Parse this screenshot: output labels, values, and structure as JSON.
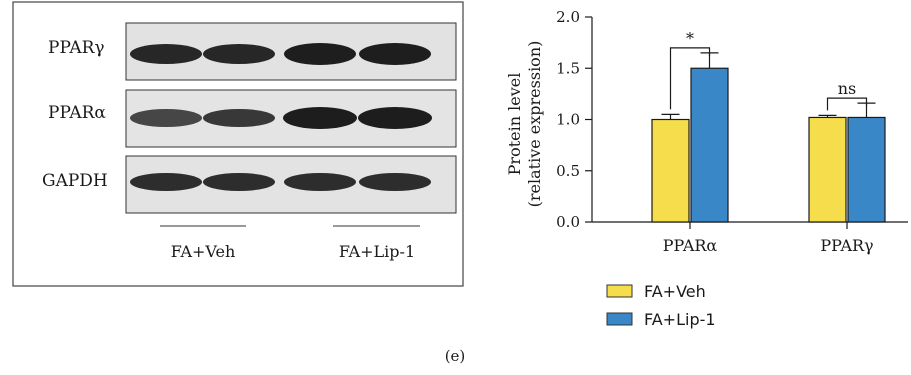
{
  "panel_label": "(e)",
  "western_blot": {
    "rows": [
      {
        "label": "PPARγ"
      },
      {
        "label": "PPARα"
      },
      {
        "label": "GAPDH"
      }
    ],
    "groups": [
      {
        "label": "FA+Veh",
        "lanes": 2
      },
      {
        "label": "FA+Lip-1",
        "lanes": 2
      }
    ]
  },
  "chart_data": {
    "type": "bar",
    "categories": [
      "PPARα",
      "PPARγ"
    ],
    "series": [
      {
        "name": "FA+Veh",
        "color": "#f6dd4c",
        "values": [
          1.0,
          1.02
        ],
        "errors": [
          0.05,
          0.02
        ]
      },
      {
        "name": "FA+Lip-1",
        "color": "#3a87c8",
        "values": [
          1.5,
          1.02
        ],
        "errors": [
          0.15,
          0.14
        ]
      }
    ],
    "ylabel_lines": [
      "Protein level",
      "(relative expression)"
    ],
    "ylim": [
      0,
      2.0
    ],
    "yticks": [
      "0.0",
      "0.5",
      "1.0",
      "1.5",
      "2.0"
    ],
    "significance": [
      "*",
      "ns"
    ],
    "legend_position": "below"
  }
}
